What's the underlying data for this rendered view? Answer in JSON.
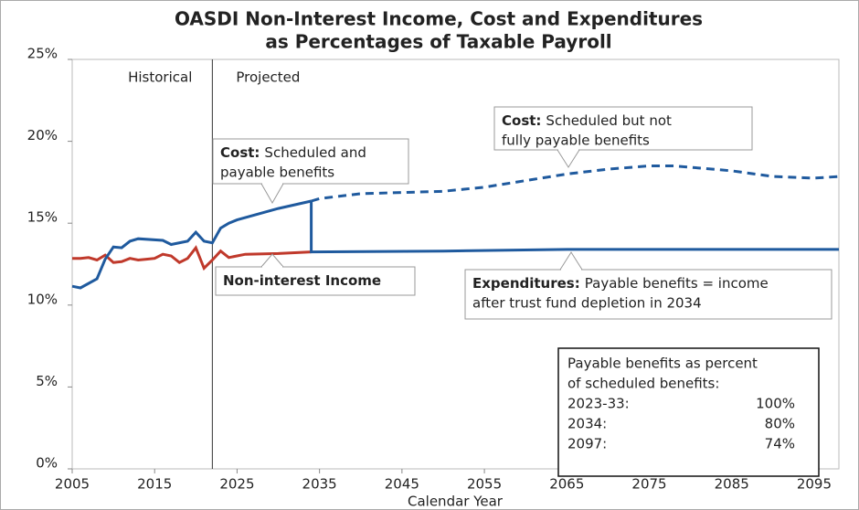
{
  "chart_data": {
    "type": "line",
    "title": [
      "OASDI Non-Interest Income, Cost and Expenditures",
      "as Percentages of Taxable Payroll"
    ],
    "x_label": "Calendar Year",
    "xlim": [
      2005,
      2098
    ],
    "xticks": [
      2005,
      2015,
      2025,
      2035,
      2045,
      2055,
      2065,
      2075,
      2085,
      2095
    ],
    "ylim": [
      0,
      25
    ],
    "yticks": [
      {
        "value": 0,
        "label": "0%"
      },
      {
        "value": 5,
        "label": "5%"
      },
      {
        "value": 10,
        "label": "10%"
      },
      {
        "value": 15,
        "label": "15%"
      },
      {
        "value": 20,
        "label": "20%"
      },
      {
        "value": 25,
        "label": "25%"
      }
    ],
    "divider_x": 2022,
    "periods": [
      "Historical",
      "Projected"
    ],
    "series": [
      {
        "color": "#c0392b",
        "dash": false,
        "x": [
          2005,
          2006,
          2007,
          2008,
          2009,
          2010,
          2011,
          2012,
          2013,
          2014,
          2015,
          2016,
          2017,
          2018,
          2019,
          2020,
          2021,
          2022,
          2023,
          2024,
          2025,
          2026,
          2030,
          2034
        ],
        "values": [
          12.85,
          12.85,
          12.9,
          12.75,
          13.05,
          12.6,
          12.65,
          12.85,
          12.75,
          12.8,
          12.85,
          13.1,
          13.0,
          12.6,
          12.85,
          13.5,
          12.25,
          12.75,
          13.3,
          12.9,
          13.0,
          13.1,
          13.15,
          13.25
        ]
      },
      {
        "color": "#1f5a9e",
        "dash": false,
        "x": [
          2005,
          2006,
          2008,
          2009,
          2010,
          2011,
          2012,
          2013,
          2016,
          2017,
          2019,
          2020,
          2021,
          2022,
          2023,
          2024,
          2025,
          2030,
          2034
        ],
        "values": [
          11.15,
          11.05,
          11.6,
          12.8,
          13.55,
          13.5,
          13.9,
          14.05,
          13.95,
          13.7,
          13.9,
          14.45,
          13.9,
          13.8,
          14.7,
          15.0,
          15.2,
          15.9,
          16.35
        ]
      },
      {
        "color": "#1f5a9e",
        "dash": true,
        "x": [
          2034,
          2035,
          2040,
          2050,
          2055,
          2060,
          2065,
          2070,
          2075,
          2078,
          2085,
          2090,
          2095,
          2098
        ],
        "values": [
          16.35,
          16.5,
          16.8,
          16.95,
          17.2,
          17.6,
          18.0,
          18.3,
          18.5,
          18.5,
          18.2,
          17.85,
          17.75,
          17.85
        ]
      },
      {
        "color": "#1f5a9e",
        "dash": false,
        "x": [
          2034,
          2034,
          2050,
          2065,
          2080,
          2098
        ],
        "values": [
          16.35,
          13.25,
          13.3,
          13.4,
          13.4,
          13.4
        ]
      }
    ],
    "annotations": [
      {
        "label": "Cost:",
        "text": [
          "Scheduled and",
          "payable benefits"
        ]
      },
      {
        "label": "Cost:",
        "text": [
          "Scheduled but not",
          "fully payable benefits"
        ]
      },
      {
        "label": "Non-interest Income",
        "text": []
      },
      {
        "label": "Expenditures:",
        "text": [
          "Payable benefits = income",
          "after trust fund depletion in 2034"
        ]
      }
    ],
    "table": {
      "title": [
        "Payable benefits as percent",
        "of scheduled benefits:"
      ],
      "rows": [
        [
          "2023-33:",
          "100%"
        ],
        [
          "2034:",
          "80%"
        ],
        [
          "2097:",
          "74%"
        ]
      ]
    }
  }
}
